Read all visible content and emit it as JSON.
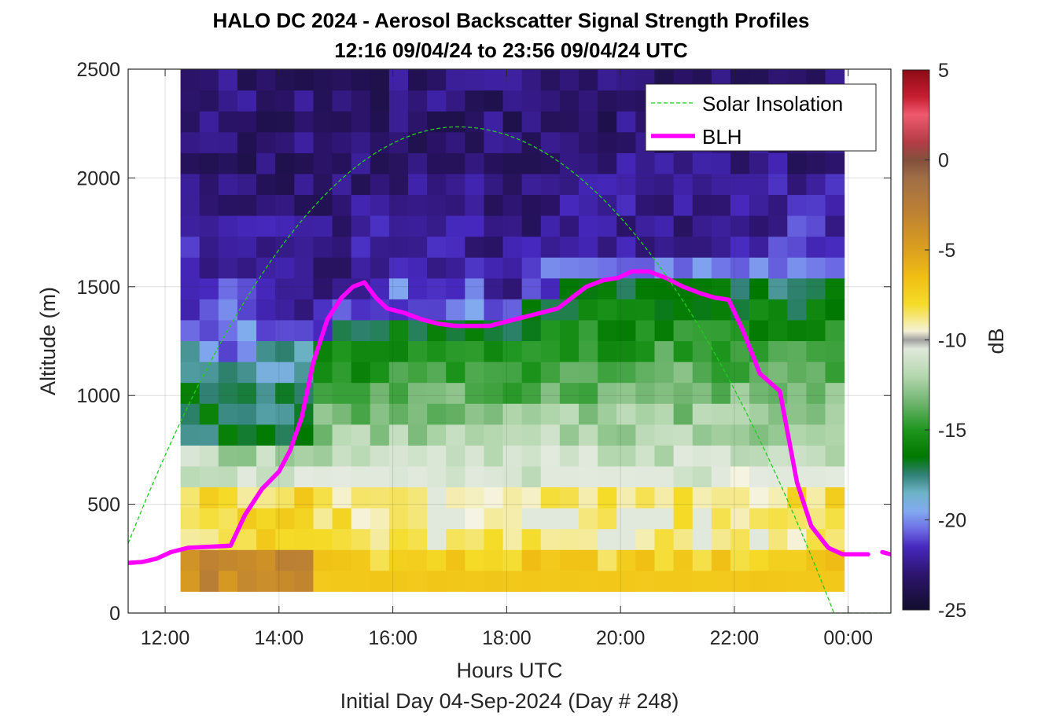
{
  "chart_data": {
    "type": "heatmap",
    "title": "HALO DC 2024 - Aerosol Backscatter Signal Strength Profiles",
    "subtitle": "12:16 09/04/24 to 23:56 09/04/24  UTC",
    "xlabel": "Hours UTC",
    "xlabel2": "Initial Day 04-Sep-2024 (Day # 248)",
    "ylabel": "Altitude (m)",
    "colorbar_label": "dB",
    "xlim": [
      11.35,
      24.75
    ],
    "ylim": [
      0,
      2500
    ],
    "x_ticks": [
      12,
      14,
      16,
      18,
      20,
      22,
      24
    ],
    "x_tick_labels": [
      "12:00",
      "14:00",
      "16:00",
      "18:00",
      "20:00",
      "22:00",
      "00:00"
    ],
    "y_ticks": [
      0,
      500,
      1000,
      1500,
      2000,
      2500
    ],
    "y_tick_labels": [
      "0",
      "500",
      "1000",
      "1500",
      "2000",
      "2500"
    ],
    "clim": [
      -25,
      5
    ],
    "colorbar_ticks": [
      5,
      0,
      -5,
      -10,
      -15,
      -20,
      -25
    ],
    "colorbar_tick_labels": [
      "5",
      "0",
      "-5",
      "-10",
      "-15",
      "-20",
      "-25"
    ],
    "grid": true,
    "legend_position": "top-right",
    "legend": [
      {
        "name": "Solar Insolation",
        "style": "dashed",
        "color": "#22cc22"
      },
      {
        "name": "BLH",
        "style": "solid",
        "color": "#ff00ff"
      }
    ],
    "heatmap": {
      "x_start": 12.27,
      "x_end": 23.93,
      "n_cols": 35,
      "y_start": 100,
      "y_end": 2500,
      "n_rows": 25,
      "description": "columns: backscatter in dB by altitude band (100 m rows)",
      "column_profile_points": [
        {
          "x": 12.27,
          "blh": 1250,
          "high": -21,
          "top": -23
        },
        {
          "x": 13.3,
          "blh": 1180,
          "high": -20,
          "top": -23
        },
        {
          "x": 14.2,
          "blh": 1250,
          "high": -22,
          "top": -23
        },
        {
          "x": 15.0,
          "blh": 1300,
          "high": -22,
          "top": -23
        },
        {
          "x": 16.0,
          "blh": 1380,
          "high": -21,
          "top": -23
        },
        {
          "x": 17.0,
          "blh": 1400,
          "high": -22,
          "top": -23
        },
        {
          "x": 18.0,
          "blh": 1350,
          "high": -22,
          "top": -23
        },
        {
          "x": 19.0,
          "blh": 1520,
          "high": -22,
          "top": -23
        },
        {
          "x": 20.0,
          "blh": 1560,
          "high": -22,
          "top": -23
        },
        {
          "x": 21.0,
          "blh": 1560,
          "high": -22,
          "top": -23
        },
        {
          "x": 22.0,
          "blh": 1560,
          "high": -22,
          "top": -23
        },
        {
          "x": 23.0,
          "blh": 1500,
          "high": -21,
          "top": -23
        },
        {
          "x": 23.93,
          "blh": 1500,
          "high": -21,
          "top": -23
        }
      ]
    },
    "series": [
      {
        "name": "BLH",
        "x": [
          11.35,
          11.6,
          11.85,
          12.1,
          12.4,
          12.8,
          13.15,
          13.4,
          13.7,
          14.0,
          14.2,
          14.4,
          14.6,
          14.85,
          15.1,
          15.3,
          15.5,
          15.7,
          15.9,
          16.2,
          16.5,
          16.8,
          17.1,
          17.4,
          17.7,
          18.0,
          18.3,
          18.6,
          18.9,
          19.15,
          19.4,
          19.7,
          19.95,
          20.2,
          20.5,
          20.8,
          21.1,
          21.4,
          21.65,
          21.9,
          22.15,
          22.45,
          22.8,
          23.1,
          23.35,
          23.65,
          23.9,
          24.0,
          24.35
        ],
        "y": [
          230,
          235,
          250,
          280,
          300,
          305,
          310,
          450,
          570,
          650,
          750,
          900,
          1150,
          1350,
          1450,
          1500,
          1520,
          1450,
          1400,
          1380,
          1350,
          1330,
          1320,
          1320,
          1320,
          1340,
          1360,
          1380,
          1400,
          1450,
          1500,
          1530,
          1540,
          1570,
          1570,
          1540,
          1500,
          1470,
          1450,
          1440,
          1300,
          1100,
          1020,
          600,
          400,
          300,
          270,
          270,
          270
        ]
      },
      {
        "name": "BLH-late",
        "x": [
          24.6,
          24.75
        ],
        "y": [
          280,
          270
        ]
      },
      {
        "name": "Solar Insolation",
        "x": [
          11.35,
          17.15,
          23.75,
          24.75
        ],
        "y": [
          320,
          2235,
          0,
          0
        ]
      }
    ]
  }
}
